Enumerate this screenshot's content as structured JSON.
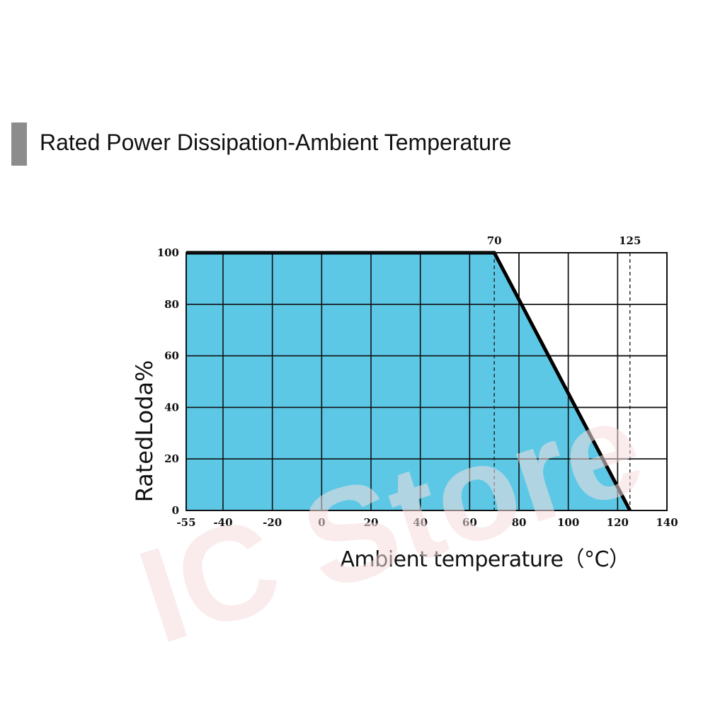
{
  "title": "Rated Power Dissipation-Ambient Temperature",
  "watermark": "IC Store",
  "colors": {
    "fill": "#5cc8e6",
    "line": "#000000",
    "grid": "#111111",
    "title_bar": "#8c8c8c"
  },
  "chart_data": {
    "type": "area",
    "title": "Rated Power Dissipation-Ambient Temperature",
    "xlabel": "Ambient temperature（°C）",
    "ylabel": "RatedLoda%",
    "x_ticks": [
      -55,
      -40,
      -20,
      0,
      20,
      40,
      60,
      80,
      100,
      120,
      140
    ],
    "y_ticks": [
      0,
      20,
      40,
      60,
      80,
      100
    ],
    "xlim": [
      -55,
      140
    ],
    "ylim": [
      0,
      100
    ],
    "grid": true,
    "x": [
      -55,
      70,
      125
    ],
    "y": [
      100,
      100,
      0
    ],
    "annotations": [
      {
        "x": 70,
        "label": "70",
        "style": "dashed"
      },
      {
        "x": 125,
        "label": "125",
        "style": "dashed"
      }
    ]
  }
}
